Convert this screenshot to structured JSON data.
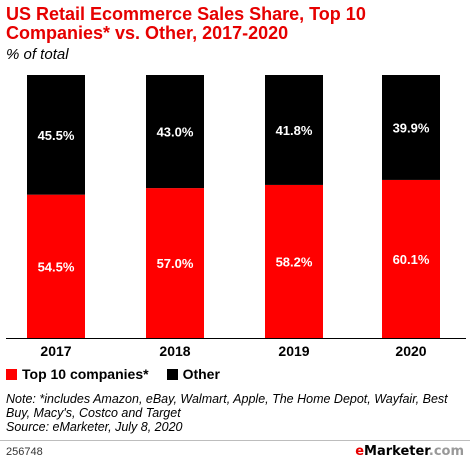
{
  "chart_data": {
    "type": "bar",
    "stacked": true,
    "title": "US Retail Ecommerce Sales Share, Top 10 Companies* vs. Other, 2017-2020",
    "subtitle": "% of total",
    "categories": [
      "2017",
      "2018",
      "2019",
      "2020"
    ],
    "series": [
      {
        "name": "Top 10 companies*",
        "color": "#ff0000",
        "values": [
          54.5,
          57.0,
          58.2,
          60.1
        ],
        "labels": [
          "54.5%",
          "57.0%",
          "58.2%",
          "60.1%"
        ]
      },
      {
        "name": "Other",
        "color": "#000000",
        "values": [
          45.5,
          43.0,
          41.8,
          39.9
        ],
        "labels": [
          "45.5%",
          "43.0%",
          "41.8%",
          "39.9%"
        ]
      }
    ],
    "ylim": [
      0,
      100
    ],
    "grid": false,
    "legend_position": "bottom-left"
  },
  "note": "Note: *includes Amazon, eBay, Walmart, Apple, The Home Depot, Wayfair, Best Buy, Macy's, Costco and Target",
  "source": "Source: eMarketer, July 8, 2020",
  "footer": {
    "id": "256748",
    "brand": "eMarketer",
    "brand_suffix": ".com",
    "accent_color": "#e60000"
  }
}
